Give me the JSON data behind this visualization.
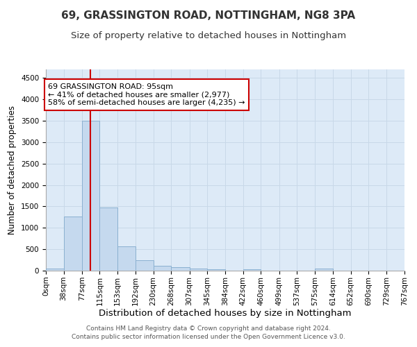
{
  "title1": "69, GRASSINGTON ROAD, NOTTINGHAM, NG8 3PA",
  "title2": "Size of property relative to detached houses in Nottingham",
  "xlabel": "Distribution of detached houses by size in Nottingham",
  "ylabel": "Number of detached properties",
  "bin_edges": [
    0,
    38,
    77,
    115,
    153,
    192,
    230,
    268,
    307,
    345,
    384,
    422,
    460,
    499,
    537,
    575,
    614,
    652,
    690,
    729,
    767
  ],
  "bar_heights": [
    50,
    1270,
    3500,
    1480,
    570,
    240,
    120,
    85,
    55,
    30,
    0,
    30,
    0,
    0,
    0,
    55,
    0,
    0,
    0,
    0
  ],
  "bar_color": "#c5d9ee",
  "bar_edge_color": "#8ab0d0",
  "property_size": 95,
  "vline_color": "#cc0000",
  "annotation_text": "69 GRASSINGTON ROAD: 95sqm\n← 41% of detached houses are smaller (2,977)\n58% of semi-detached houses are larger (4,235) →",
  "annotation_box_color": "#ffffff",
  "annotation_box_edge": "#cc0000",
  "ylim": [
    0,
    4700
  ],
  "yticks": [
    0,
    500,
    1000,
    1500,
    2000,
    2500,
    3000,
    3500,
    4000,
    4500
  ],
  "grid_color": "#c8d8e8",
  "plot_bg_color": "#ddeaf7",
  "footer_text": "Contains HM Land Registry data © Crown copyright and database right 2024.\nContains public sector information licensed under the Open Government Licence v3.0.",
  "title1_fontsize": 11,
  "title2_fontsize": 9.5,
  "xlabel_fontsize": 9.5,
  "ylabel_fontsize": 8.5,
  "tick_fontsize": 7.5,
  "annotation_fontsize": 8,
  "footer_fontsize": 6.5
}
